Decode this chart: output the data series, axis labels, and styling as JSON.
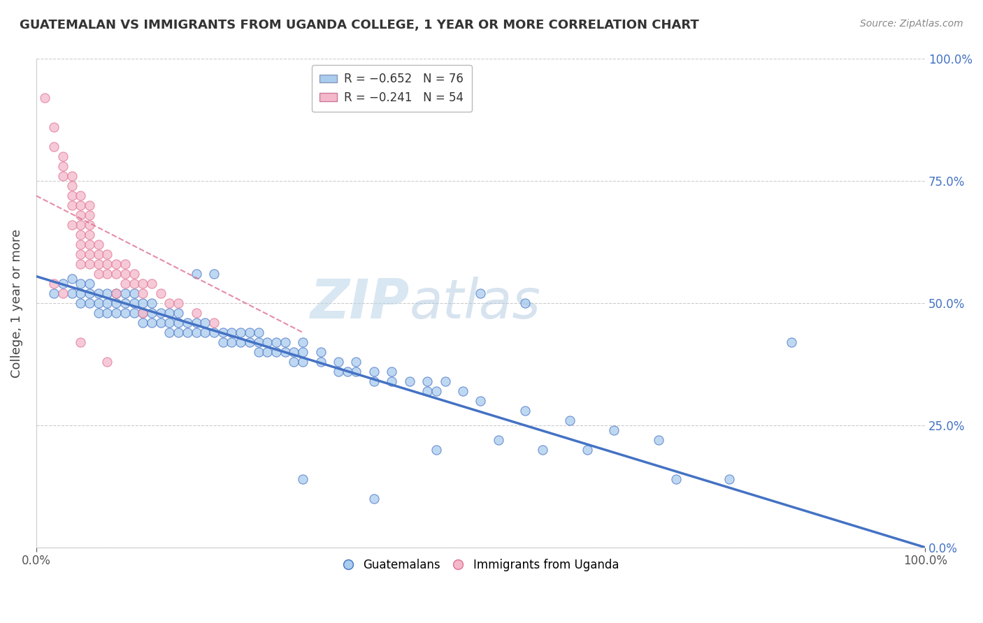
{
  "title": "GUATEMALAN VS IMMIGRANTS FROM UGANDA COLLEGE, 1 YEAR OR MORE CORRELATION CHART",
  "source": "Source: ZipAtlas.com",
  "ylabel": "College, 1 year or more",
  "ytick_vals": [
    0.0,
    0.25,
    0.5,
    0.75,
    1.0
  ],
  "ytick_labels_right": [
    "0.0%",
    "25.0%",
    "50.0%",
    "75.0%",
    "100.0%"
  ],
  "xtick_vals": [
    0.0,
    1.0
  ],
  "xtick_labels": [
    "0.0%",
    "100.0%"
  ],
  "xlim": [
    0.0,
    1.0
  ],
  "ylim": [
    0.0,
    1.0
  ],
  "color_blue": "#aaccee",
  "color_pink": "#f4b8cb",
  "line_blue": "#4472c4",
  "line_pink": "#e07090",
  "watermark_zip": "ZIP",
  "watermark_atlas": "atlas",
  "blue_points": [
    [
      0.02,
      0.52
    ],
    [
      0.03,
      0.54
    ],
    [
      0.04,
      0.55
    ],
    [
      0.04,
      0.52
    ],
    [
      0.05,
      0.54
    ],
    [
      0.05,
      0.52
    ],
    [
      0.05,
      0.5
    ],
    [
      0.06,
      0.54
    ],
    [
      0.06,
      0.52
    ],
    [
      0.06,
      0.5
    ],
    [
      0.07,
      0.52
    ],
    [
      0.07,
      0.5
    ],
    [
      0.07,
      0.48
    ],
    [
      0.08,
      0.52
    ],
    [
      0.08,
      0.5
    ],
    [
      0.08,
      0.48
    ],
    [
      0.09,
      0.52
    ],
    [
      0.09,
      0.5
    ],
    [
      0.09,
      0.48
    ],
    [
      0.1,
      0.52
    ],
    [
      0.1,
      0.5
    ],
    [
      0.1,
      0.48
    ],
    [
      0.11,
      0.52
    ],
    [
      0.11,
      0.5
    ],
    [
      0.11,
      0.48
    ],
    [
      0.12,
      0.5
    ],
    [
      0.12,
      0.48
    ],
    [
      0.12,
      0.46
    ],
    [
      0.13,
      0.5
    ],
    [
      0.13,
      0.48
    ],
    [
      0.13,
      0.46
    ],
    [
      0.14,
      0.48
    ],
    [
      0.14,
      0.46
    ],
    [
      0.15,
      0.48
    ],
    [
      0.15,
      0.46
    ],
    [
      0.15,
      0.44
    ],
    [
      0.16,
      0.48
    ],
    [
      0.16,
      0.46
    ],
    [
      0.16,
      0.44
    ],
    [
      0.17,
      0.46
    ],
    [
      0.17,
      0.44
    ],
    [
      0.18,
      0.46
    ],
    [
      0.18,
      0.44
    ],
    [
      0.18,
      0.56
    ],
    [
      0.19,
      0.46
    ],
    [
      0.19,
      0.44
    ],
    [
      0.2,
      0.44
    ],
    [
      0.2,
      0.56
    ],
    [
      0.21,
      0.44
    ],
    [
      0.21,
      0.42
    ],
    [
      0.22,
      0.44
    ],
    [
      0.22,
      0.42
    ],
    [
      0.23,
      0.44
    ],
    [
      0.23,
      0.42
    ],
    [
      0.24,
      0.44
    ],
    [
      0.24,
      0.42
    ],
    [
      0.25,
      0.44
    ],
    [
      0.25,
      0.42
    ],
    [
      0.25,
      0.4
    ],
    [
      0.26,
      0.42
    ],
    [
      0.26,
      0.4
    ],
    [
      0.27,
      0.42
    ],
    [
      0.27,
      0.4
    ],
    [
      0.28,
      0.42
    ],
    [
      0.28,
      0.4
    ],
    [
      0.29,
      0.4
    ],
    [
      0.29,
      0.38
    ],
    [
      0.3,
      0.42
    ],
    [
      0.3,
      0.4
    ],
    [
      0.3,
      0.38
    ],
    [
      0.32,
      0.4
    ],
    [
      0.32,
      0.38
    ],
    [
      0.34,
      0.38
    ],
    [
      0.34,
      0.36
    ],
    [
      0.36,
      0.38
    ],
    [
      0.36,
      0.36
    ],
    [
      0.38,
      0.36
    ],
    [
      0.38,
      0.34
    ],
    [
      0.4,
      0.36
    ],
    [
      0.4,
      0.34
    ],
    [
      0.42,
      0.34
    ],
    [
      0.44,
      0.34
    ],
    [
      0.44,
      0.32
    ],
    [
      0.46,
      0.34
    ],
    [
      0.48,
      0.32
    ],
    [
      0.5,
      0.3
    ],
    [
      0.55,
      0.28
    ],
    [
      0.6,
      0.26
    ],
    [
      0.65,
      0.24
    ],
    [
      0.7,
      0.22
    ],
    [
      0.85,
      0.42
    ],
    [
      0.5,
      0.52
    ],
    [
      0.55,
      0.5
    ],
    [
      0.35,
      0.36
    ],
    [
      0.45,
      0.32
    ],
    [
      0.3,
      0.14
    ],
    [
      0.38,
      0.1
    ],
    [
      0.45,
      0.2
    ],
    [
      0.52,
      0.22
    ],
    [
      0.57,
      0.2
    ],
    [
      0.62,
      0.2
    ],
    [
      0.72,
      0.14
    ],
    [
      0.78,
      0.14
    ]
  ],
  "pink_points": [
    [
      0.01,
      0.92
    ],
    [
      0.02,
      0.86
    ],
    [
      0.02,
      0.82
    ],
    [
      0.03,
      0.8
    ],
    [
      0.03,
      0.78
    ],
    [
      0.03,
      0.76
    ],
    [
      0.04,
      0.76
    ],
    [
      0.04,
      0.74
    ],
    [
      0.04,
      0.72
    ],
    [
      0.04,
      0.7
    ],
    [
      0.05,
      0.72
    ],
    [
      0.05,
      0.7
    ],
    [
      0.05,
      0.68
    ],
    [
      0.05,
      0.66
    ],
    [
      0.05,
      0.64
    ],
    [
      0.05,
      0.62
    ],
    [
      0.05,
      0.6
    ],
    [
      0.06,
      0.68
    ],
    [
      0.06,
      0.66
    ],
    [
      0.06,
      0.64
    ],
    [
      0.06,
      0.62
    ],
    [
      0.06,
      0.6
    ],
    [
      0.06,
      0.58
    ],
    [
      0.07,
      0.62
    ],
    [
      0.07,
      0.6
    ],
    [
      0.07,
      0.58
    ],
    [
      0.08,
      0.6
    ],
    [
      0.08,
      0.58
    ],
    [
      0.08,
      0.56
    ],
    [
      0.09,
      0.58
    ],
    [
      0.09,
      0.56
    ],
    [
      0.1,
      0.58
    ],
    [
      0.1,
      0.56
    ],
    [
      0.1,
      0.54
    ],
    [
      0.11,
      0.56
    ],
    [
      0.11,
      0.54
    ],
    [
      0.12,
      0.54
    ],
    [
      0.12,
      0.52
    ],
    [
      0.13,
      0.54
    ],
    [
      0.14,
      0.52
    ],
    [
      0.15,
      0.5
    ],
    [
      0.16,
      0.5
    ],
    [
      0.18,
      0.48
    ],
    [
      0.2,
      0.46
    ],
    [
      0.05,
      0.42
    ],
    [
      0.08,
      0.38
    ],
    [
      0.02,
      0.54
    ],
    [
      0.03,
      0.52
    ],
    [
      0.06,
      0.7
    ],
    [
      0.04,
      0.66
    ],
    [
      0.05,
      0.58
    ],
    [
      0.07,
      0.56
    ],
    [
      0.09,
      0.52
    ],
    [
      0.12,
      0.48
    ]
  ],
  "blue_line": {
    "x0": 0.0,
    "y0": 0.555,
    "x1": 1.0,
    "y1": 0.0
  },
  "pink_line": {
    "x0": 0.0,
    "y0": 0.72,
    "x1": 0.3,
    "y1": 0.44
  }
}
